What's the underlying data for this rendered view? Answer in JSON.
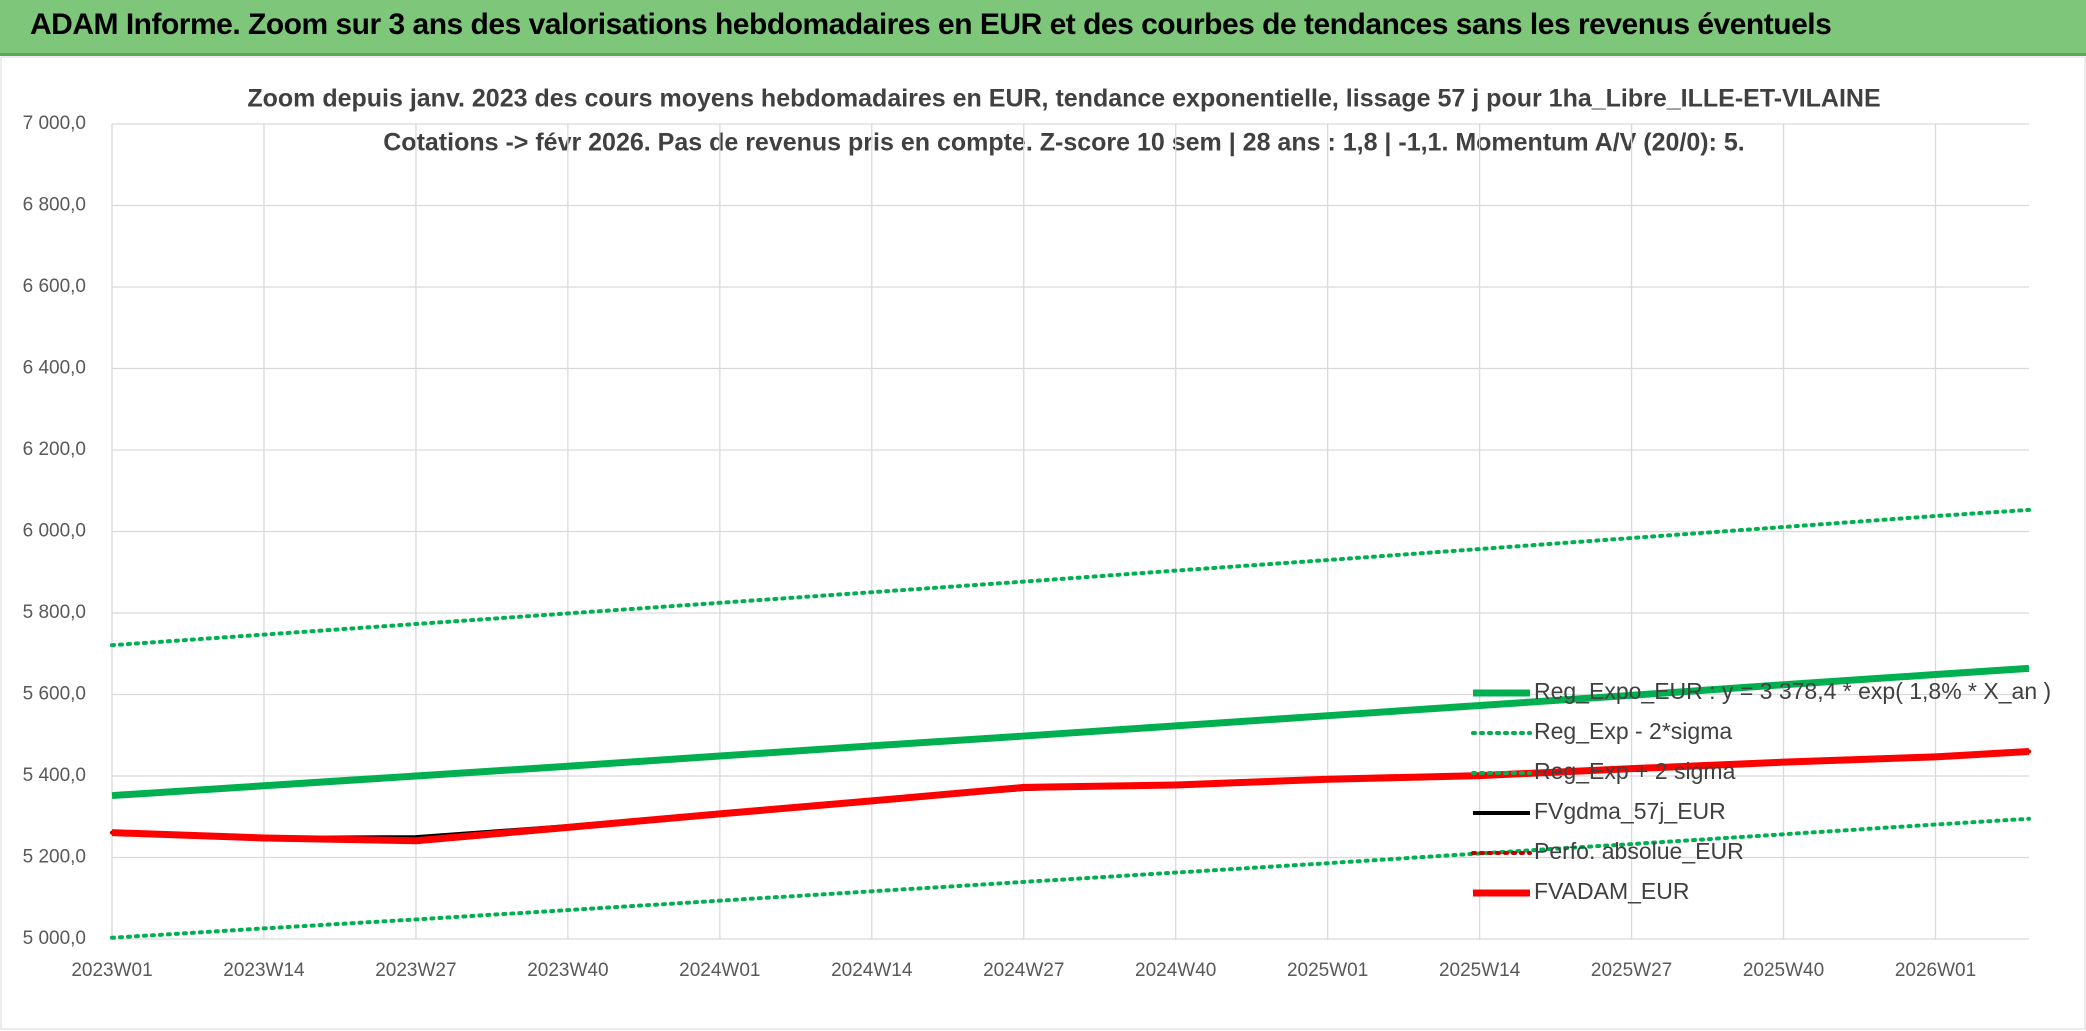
{
  "header": {
    "title": "ADAM Informe. Zoom sur 3 ans des valorisations hebdomadaires en EUR et des courbes de tendances sans les revenus éventuels"
  },
  "chart_data": {
    "type": "line",
    "title": [
      "Zoom depuis janv. 2023 des cours moyens hebdomadaires en EUR, tendance exponentielle, lissage 57 j pour 1ha_Libre_ILLE-ET-VILAINE",
      "Cotations -> févr 2026. Pas de revenus pris en compte. Z-score 10 sem | 28 ans : 1,8 | -1,1. Momentum A/V (20/0): 5."
    ],
    "x": [
      0,
      13,
      26,
      39,
      52,
      65,
      78,
      91,
      104,
      117,
      130,
      143,
      156,
      164
    ],
    "xlim": [
      0,
      164
    ],
    "xticks": [
      {
        "value": 0,
        "label": "2023W01"
      },
      {
        "value": 13,
        "label": "2023W14"
      },
      {
        "value": 26,
        "label": "2023W27"
      },
      {
        "value": 39,
        "label": "2023W40"
      },
      {
        "value": 52,
        "label": "2024W01"
      },
      {
        "value": 65,
        "label": "2024W14"
      },
      {
        "value": 78,
        "label": "2024W27"
      },
      {
        "value": 91,
        "label": "2024W40"
      },
      {
        "value": 104,
        "label": "2025W01"
      },
      {
        "value": 117,
        "label": "2025W14"
      },
      {
        "value": 130,
        "label": "2025W27"
      },
      {
        "value": 143,
        "label": "2025W40"
      },
      {
        "value": 156,
        "label": "2026W01"
      }
    ],
    "ylim": [
      5000,
      7000
    ],
    "yticks": [
      {
        "value": 5000,
        "label": "5 000,0"
      },
      {
        "value": 5200,
        "label": "5 200,0"
      },
      {
        "value": 5400,
        "label": "5 400,0"
      },
      {
        "value": 5600,
        "label": "5 600,0"
      },
      {
        "value": 5800,
        "label": "5 800,0"
      },
      {
        "value": 6000,
        "label": "6 000,0"
      },
      {
        "value": 6200,
        "label": "6 200,0"
      },
      {
        "value": 6400,
        "label": "6 400,0"
      },
      {
        "value": 6600,
        "label": "6 600,0"
      },
      {
        "value": 6800,
        "label": "6 800,0"
      },
      {
        "value": 7000,
        "label": "7 000,0"
      }
    ],
    "grid": true,
    "series": [
      {
        "name": "Reg_Expo_EUR : y = 3 378,4 * exp( 1,8% *  X_an )",
        "color": "#00b050",
        "style": "solid",
        "width": 7,
        "values": [
          5352,
          5376,
          5400,
          5424,
          5449,
          5474,
          5498,
          5523,
          5548,
          5573,
          5598,
          5624,
          5649,
          5664
        ]
      },
      {
        "name": "Reg_Exp - 2*sigma",
        "color": "#00b050",
        "style": "dotted",
        "width": 4,
        "values": [
          5003,
          5026,
          5048,
          5071,
          5094,
          5117,
          5140,
          5163,
          5186,
          5210,
          5233,
          5257,
          5281,
          5295
        ]
      },
      {
        "name": "Reg_Exp + 2 sigma",
        "color": "#00b050",
        "style": "dotted",
        "width": 4,
        "values": [
          5721,
          5747,
          5773,
          5799,
          5825,
          5851,
          5877,
          5904,
          5930,
          5957,
          5984,
          6011,
          6038,
          6053
        ]
      },
      {
        "name": "FVgdma_57j_EUR",
        "color": "#000000",
        "style": "solid",
        "width": 4,
        "values": [
          5261,
          5248,
          5250,
          5277,
          5307,
          5339,
          5368,
          5378,
          5392,
          5401,
          5418,
          5434,
          5447,
          5460
        ]
      },
      {
        "name": "Perfo. absolue_EUR",
        "color": "#c00000",
        "style": "dotted",
        "width": 4,
        "values": [
          5261,
          5248,
          5241,
          5274,
          5307,
          5339,
          5372,
          5378,
          5392,
          5401,
          5418,
          5434,
          5447,
          5460
        ]
      },
      {
        "name": "FVADAM_EUR",
        "color": "#ff0000",
        "style": "solid",
        "width": 7,
        "values": [
          5261,
          5248,
          5241,
          5274,
          5307,
          5339,
          5372,
          5378,
          5392,
          5401,
          5418,
          5434,
          5447,
          5460
        ]
      }
    ]
  }
}
